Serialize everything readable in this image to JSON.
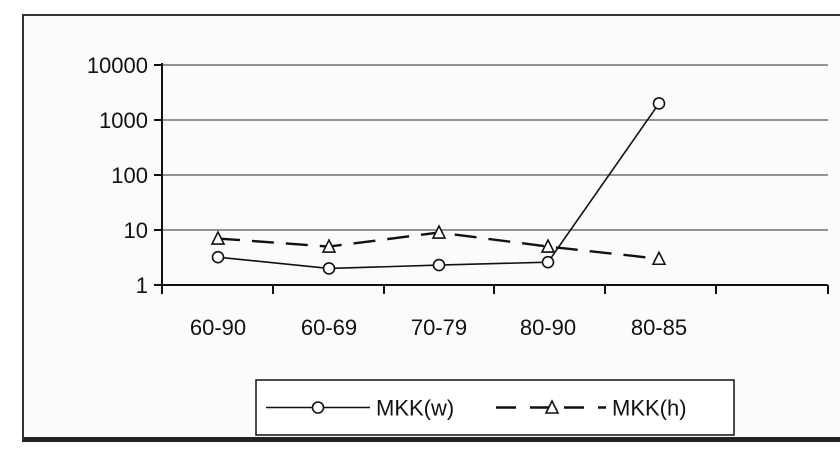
{
  "chart_data": {
    "type": "line",
    "categories": [
      "60-90",
      "60-69",
      "70-79",
      "80-90",
      "80-85"
    ],
    "yscale": "log",
    "ylim": [
      1,
      10000
    ],
    "yticks": [
      1,
      10,
      100,
      1000,
      10000
    ],
    "ytick_labels": [
      "1",
      "10",
      "100",
      "1000",
      "10000"
    ],
    "grid": true,
    "legend_position": "bottom",
    "series": [
      {
        "name": "MKK(w)",
        "marker": "circle",
        "linestyle": "solid",
        "x": [
          "60-90",
          "60-69",
          "70-79",
          "80-90",
          "80-85"
        ],
        "values": [
          3.2,
          2.0,
          2.3,
          2.6,
          2000
        ]
      },
      {
        "name": "MKK(h)",
        "marker": "triangle",
        "linestyle": "dashed",
        "x": [
          "60-90",
          "60-69",
          "70-79",
          "80-90",
          "80-85"
        ],
        "values": [
          7.0,
          5.0,
          9.0,
          5.0,
          3.0
        ]
      }
    ],
    "colors": {
      "line": "#111111",
      "grid": "#555555",
      "marker_fill": "#ffffff"
    }
  }
}
